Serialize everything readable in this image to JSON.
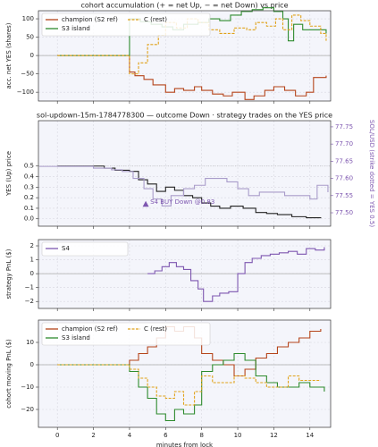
{
  "chart_data": [
    {
      "type": "line",
      "title": "cohort accumulation (+ = net Up, − = net Down) vs price",
      "ylabel": "acc. net YES (shares)",
      "drawstyle": "steps-post",
      "grid": true,
      "zero_line": true,
      "legend": "upper left",
      "legend_columns": 2,
      "xlim": [
        -1.05,
        15.15
      ],
      "ylim": [
        -124,
        122
      ],
      "yticks": [
        {
          "value": -100,
          "label": "−100"
        },
        {
          "value": -50,
          "label": "−50"
        },
        0,
        50,
        100
      ],
      "series": [
        {
          "name": "champion (S2 ref)",
          "color": "#b5441a",
          "dash": false,
          "x": [
            0,
            4,
            4.3,
            4.8,
            5.3,
            6,
            6.5,
            7,
            7.6,
            8,
            8.6,
            9.2,
            9.7,
            10.4,
            10.9,
            11.5,
            12,
            12.6,
            13.2,
            13.8,
            14.2,
            14.9
          ],
          "values": [
            0,
            -45,
            -55,
            -65,
            -80,
            -100,
            -90,
            -95,
            -85,
            -95,
            -105,
            -110,
            -100,
            -120,
            -110,
            -95,
            -85,
            -95,
            -110,
            -100,
            -60,
            -55
          ]
        },
        {
          "name": "S3 island",
          "color": "#2e8b2e",
          "dash": false,
          "x": [
            0,
            4,
            4.6,
            5.2,
            5.8,
            6.4,
            7,
            7.8,
            8.4,
            9,
            9.6,
            10.2,
            10.8,
            11.4,
            12,
            12.5,
            12.8,
            13.1,
            13.6,
            14.3,
            14.9
          ],
          "values": [
            0,
            100,
            92,
            85,
            78,
            70,
            85,
            90,
            100,
            95,
            110,
            120,
            125,
            130,
            120,
            100,
            40,
            85,
            70,
            70,
            60
          ]
        },
        {
          "name": "C (rest)",
          "color": "#e0a21a",
          "dash": true,
          "x": [
            0,
            4,
            4.5,
            5,
            5.6,
            6,
            6.6,
            7.2,
            7.8,
            8.4,
            9,
            9.8,
            10.5,
            11,
            11.6,
            12.1,
            12.5,
            13,
            13.5,
            14,
            14.6,
            14.9
          ],
          "values": [
            0,
            -50,
            -20,
            30,
            55,
            90,
            75,
            100,
            90,
            70,
            60,
            75,
            70,
            90,
            80,
            100,
            70,
            110,
            95,
            80,
            60,
            40
          ]
        }
      ]
    },
    {
      "type": "line",
      "title": "sol-updown-15m-1784778300 — outcome Down · strategy trades on the YES price",
      "ylabel": "YES (Up) price",
      "y2label": "SOL/USD (strike dotted = YES 0.5)",
      "y2color": "#7e57b0",
      "drawstyle": "steps-post",
      "grid": true,
      "strike": 0.5,
      "xlim": [
        -1.05,
        15.15
      ],
      "ylim": [
        -0.07,
        0.93
      ],
      "y2lim": [
        77.461,
        77.768
      ],
      "yticks": [
        {
          "value": 0,
          "label": "0.0"
        },
        0.1,
        0.2,
        0.3,
        0.4,
        0.5
      ],
      "y2ticks": [
        {
          "value": 77.5,
          "label": "77.50"
        },
        77.55,
        {
          "value": 77.6,
          "label": "77.60"
        },
        77.65,
        {
          "value": 77.7,
          "label": "77.70"
        },
        77.75
      ],
      "series": [
        {
          "name": "YES price",
          "color": "#222222",
          "dash": false,
          "x": [
            0,
            2.6,
            3.2,
            4,
            4.5,
            5,
            5.5,
            6,
            6.5,
            7,
            7.5,
            8,
            8.5,
            9,
            9.6,
            10.3,
            11,
            11.6,
            12.2,
            13,
            13.8,
            14.6
          ],
          "values": [
            0.5,
            0.48,
            0.46,
            0.45,
            0.37,
            0.33,
            0.26,
            0.3,
            0.27,
            0.22,
            0.2,
            0.15,
            0.12,
            0.1,
            0.12,
            0.1,
            0.06,
            0.05,
            0.04,
            0.02,
            0.01,
            0.005
          ]
        },
        {
          "name": "SOL/USD",
          "color": "#a99cca",
          "dash": false,
          "axis": "y2",
          "x": [
            -1,
            1,
            2,
            3,
            3.6,
            4.2,
            4.8,
            5.3,
            5.8,
            6.3,
            7,
            7.6,
            8.2,
            8.8,
            9.4,
            10,
            10.6,
            11.2,
            12,
            12.6,
            13.2,
            14,
            14.4,
            15
          ],
          "values": [
            77.635,
            77.635,
            77.63,
            77.625,
            77.62,
            77.6,
            77.57,
            77.54,
            77.52,
            77.55,
            77.57,
            77.58,
            77.6,
            77.6,
            77.59,
            77.57,
            77.55,
            77.56,
            77.56,
            77.55,
            77.55,
            77.54,
            77.58,
            77.56
          ]
        }
      ],
      "annotations": [
        {
          "text": "S4 BUY Down @0.83",
          "x": 4.9,
          "y": 0.14
        }
      ]
    },
    {
      "type": "line",
      "ylabel": "strategy PnL ($)",
      "drawstyle": "steps-post",
      "grid": true,
      "zero_line": true,
      "legend": "upper left",
      "legend_columns": 1,
      "xlim": [
        -1.05,
        15.15
      ],
      "ylim": [
        -2.5,
        2.45
      ],
      "yticks": [
        {
          "value": -2,
          "label": "−2"
        },
        {
          "value": -1,
          "label": "−1"
        },
        0,
        1,
        2
      ],
      "series": [
        {
          "name": "S4",
          "color": "#7e57b0",
          "dash": false,
          "x": [
            5,
            5.4,
            5.8,
            6.2,
            6.6,
            7,
            7.4,
            7.8,
            8.1,
            8.6,
            9,
            9.5,
            10,
            10.4,
            10.8,
            11.3,
            11.8,
            12.3,
            12.8,
            13.3,
            13.8,
            14.3,
            14.8
          ],
          "values": [
            0,
            0.2,
            0.5,
            0.8,
            0.5,
            0.3,
            -0.5,
            -1.1,
            -2,
            -1.6,
            -1.4,
            -1.3,
            0,
            0.8,
            1.1,
            1.3,
            1.4,
            1.5,
            1.6,
            1.4,
            1.8,
            1.7,
            1.9
          ]
        }
      ]
    },
    {
      "type": "line",
      "ylabel": "cohort moving PnL ($)",
      "xlabel": "minutes from lock",
      "drawstyle": "steps-post",
      "grid": true,
      "zero_line": true,
      "legend": "upper left",
      "legend_columns": 2,
      "xlim": [
        -1.05,
        15.15
      ],
      "ylim": [
        -28,
        20
      ],
      "yticks": [
        {
          "value": -20,
          "label": "−20"
        },
        {
          "value": -10,
          "label": "−10"
        },
        0,
        10
      ],
      "xticks": [
        0,
        2,
        4,
        6,
        8,
        10,
        12,
        14
      ],
      "series": [
        {
          "name": "champion (S2 ref)",
          "color": "#b5441a",
          "dash": false,
          "x": [
            0,
            4,
            4.5,
            5,
            5.5,
            6,
            6.5,
            7,
            7.6,
            8,
            8.6,
            9.2,
            9.8,
            10.4,
            11,
            11.6,
            12.2,
            12.8,
            13.4,
            14,
            14.6
          ],
          "values": [
            0,
            2,
            5,
            8,
            12,
            17,
            15,
            17,
            12,
            5,
            2,
            0,
            -5,
            -2,
            3,
            5,
            8,
            10,
            12,
            15,
            16
          ]
        },
        {
          "name": "S3 island",
          "color": "#2e8b2e",
          "dash": false,
          "x": [
            0,
            4,
            4.5,
            5,
            5.5,
            6,
            6.5,
            7,
            7.6,
            8,
            8.6,
            9.2,
            9.8,
            10.4,
            11,
            11.6,
            12.2,
            12.8,
            13.4,
            14,
            14.8
          ],
          "values": [
            0,
            -3,
            -10,
            -15,
            -22,
            -25,
            -20,
            -22,
            -18,
            -3,
            0,
            2,
            5,
            2,
            -5,
            -8,
            -10,
            -10,
            -8,
            -10,
            -12
          ]
        },
        {
          "name": "C (rest)",
          "color": "#e0a21a",
          "dash": true,
          "x": [
            0,
            4,
            4.5,
            5,
            5.5,
            6,
            6.5,
            7,
            7.6,
            8,
            8.6,
            9.2,
            9.8,
            10.4,
            11,
            11.6,
            12.2,
            12.8,
            13.4,
            14,
            14.6
          ],
          "values": [
            0,
            -2,
            -6,
            -10,
            -14,
            -15,
            -12,
            -18,
            -12,
            -5,
            -8,
            -8,
            -5,
            -6,
            -8,
            -10,
            -10,
            -5,
            -7,
            -7,
            -7
          ]
        }
      ]
    }
  ]
}
